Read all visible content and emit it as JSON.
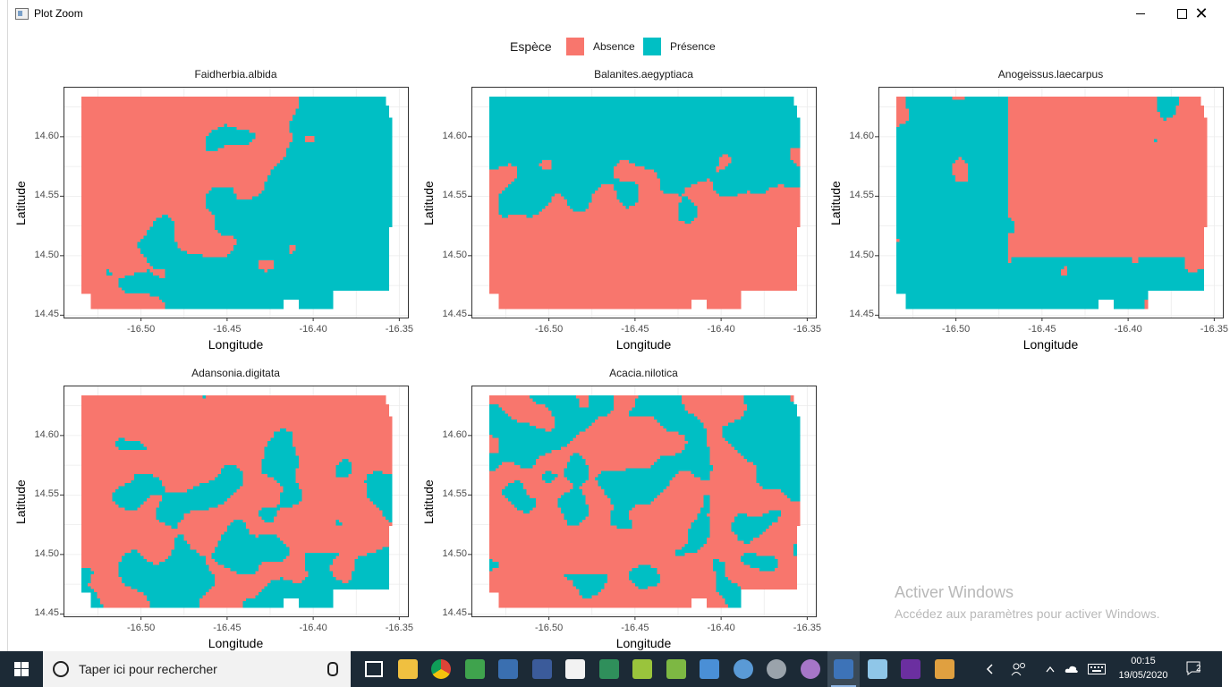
{
  "window": {
    "title": "Plot Zoom",
    "minimize": "—",
    "maximize": "□",
    "close": "✕"
  },
  "legend": {
    "title": "Espèce",
    "items": [
      {
        "label": "Absence",
        "color": "#F8766D"
      },
      {
        "label": "Présence",
        "color": "#00BFC4"
      }
    ]
  },
  "axes": {
    "xlabel": "Longitude",
    "ylabel": "Latitude"
  },
  "chart_data": [
    {
      "type": "heatmap",
      "title": "Faidherbia.albida",
      "xlabel": "Longitude",
      "ylabel": "Latitude",
      "x_ticks": [
        "-16.50",
        "-16.45",
        "-16.40",
        "-16.35"
      ],
      "y_ticks": [
        "14.45",
        "14.50",
        "14.55",
        "14.60"
      ],
      "xlim": [
        -16.545,
        -16.345
      ],
      "ylim": [
        14.448,
        14.642
      ],
      "presence_share": 0.55,
      "categories": [
        "Absence",
        "Présence"
      ],
      "colors": [
        "#F8766D",
        "#00BFC4"
      ]
    },
    {
      "type": "heatmap",
      "title": "Balanites.aegyptiaca",
      "xlabel": "Longitude",
      "ylabel": "Latitude",
      "x_ticks": [
        "-16.50",
        "-16.45",
        "-16.40",
        "-16.35"
      ],
      "y_ticks": [
        "14.45",
        "14.50",
        "14.55",
        "14.60"
      ],
      "xlim": [
        -16.545,
        -16.345
      ],
      "ylim": [
        14.448,
        14.642
      ],
      "presence_share": 0.45,
      "categories": [
        "Absence",
        "Présence"
      ],
      "colors": [
        "#F8766D",
        "#00BFC4"
      ]
    },
    {
      "type": "heatmap",
      "title": "Anogeissus.laecarpus",
      "xlabel": "Longitude",
      "ylabel": "Latitude",
      "x_ticks": [
        "-16.50",
        "-16.45",
        "-16.40",
        "-16.35"
      ],
      "y_ticks": [
        "14.45",
        "14.50",
        "14.55",
        "14.60"
      ],
      "xlim": [
        -16.545,
        -16.345
      ],
      "ylim": [
        14.448,
        14.642
      ],
      "presence_share": 0.5,
      "categories": [
        "Absence",
        "Présence"
      ],
      "colors": [
        "#F8766D",
        "#00BFC4"
      ]
    },
    {
      "type": "heatmap",
      "title": "Adansonia.digitata",
      "xlabel": "Longitude",
      "ylabel": "Latitude",
      "x_ticks": [
        "-16.50",
        "-16.45",
        "-16.40",
        "-16.35"
      ],
      "y_ticks": [
        "14.45",
        "14.50",
        "14.55",
        "14.60"
      ],
      "xlim": [
        -16.545,
        -16.345
      ],
      "ylim": [
        14.448,
        14.642
      ],
      "presence_share": 0.3,
      "categories": [
        "Absence",
        "Présence"
      ],
      "colors": [
        "#F8766D",
        "#00BFC4"
      ]
    },
    {
      "type": "heatmap",
      "title": "Acacia.nilotica",
      "xlabel": "Longitude",
      "ylabel": "Latitude",
      "x_ticks": [
        "-16.50",
        "-16.45",
        "-16.40",
        "-16.35"
      ],
      "y_ticks": [
        "14.45",
        "14.50",
        "14.55",
        "14.60"
      ],
      "xlim": [
        -16.545,
        -16.345
      ],
      "ylim": [
        14.448,
        14.642
      ],
      "presence_share": 0.35,
      "categories": [
        "Absence",
        "Présence"
      ],
      "colors": [
        "#F8766D",
        "#00BFC4"
      ]
    }
  ],
  "watermark": {
    "title": "Activer Windows",
    "subtitle": "Accédez aux paramètres pour activer Windows."
  },
  "taskbar": {
    "search_placeholder": "Taper ici pour rechercher",
    "time": "00:15",
    "date": "19/05/2020",
    "notifications": "2",
    "apps": [
      {
        "name": "task-view",
        "color": "#ffffff"
      },
      {
        "name": "file-explorer",
        "color": "#f0c040"
      },
      {
        "name": "chrome",
        "color": "#e04a3a"
      },
      {
        "name": "sheets",
        "color": "#3fa34d"
      },
      {
        "name": "calc",
        "color": "#3a6fb0"
      },
      {
        "name": "b-app",
        "color": "#3b5b9a"
      },
      {
        "name": "document",
        "color": "#f2f2f2"
      },
      {
        "name": "publisher",
        "color": "#2f8f5b"
      },
      {
        "name": "qgis-1",
        "color": "#9ac43c"
      },
      {
        "name": "qgis-2",
        "color": "#7db843"
      },
      {
        "name": "window-app",
        "color": "#4a8fd6"
      },
      {
        "name": "magnifier",
        "color": "#5a9ad6"
      },
      {
        "name": "disk-app",
        "color": "#9aa3ab"
      },
      {
        "name": "github",
        "color": "#a676c8"
      },
      {
        "name": "r-app",
        "color": "#3d73b8"
      },
      {
        "name": "notes-app",
        "color": "#8fc6e8"
      },
      {
        "name": "texstudio",
        "color": "#6b2fa0"
      },
      {
        "name": "paint",
        "color": "#e0a040"
      }
    ]
  }
}
